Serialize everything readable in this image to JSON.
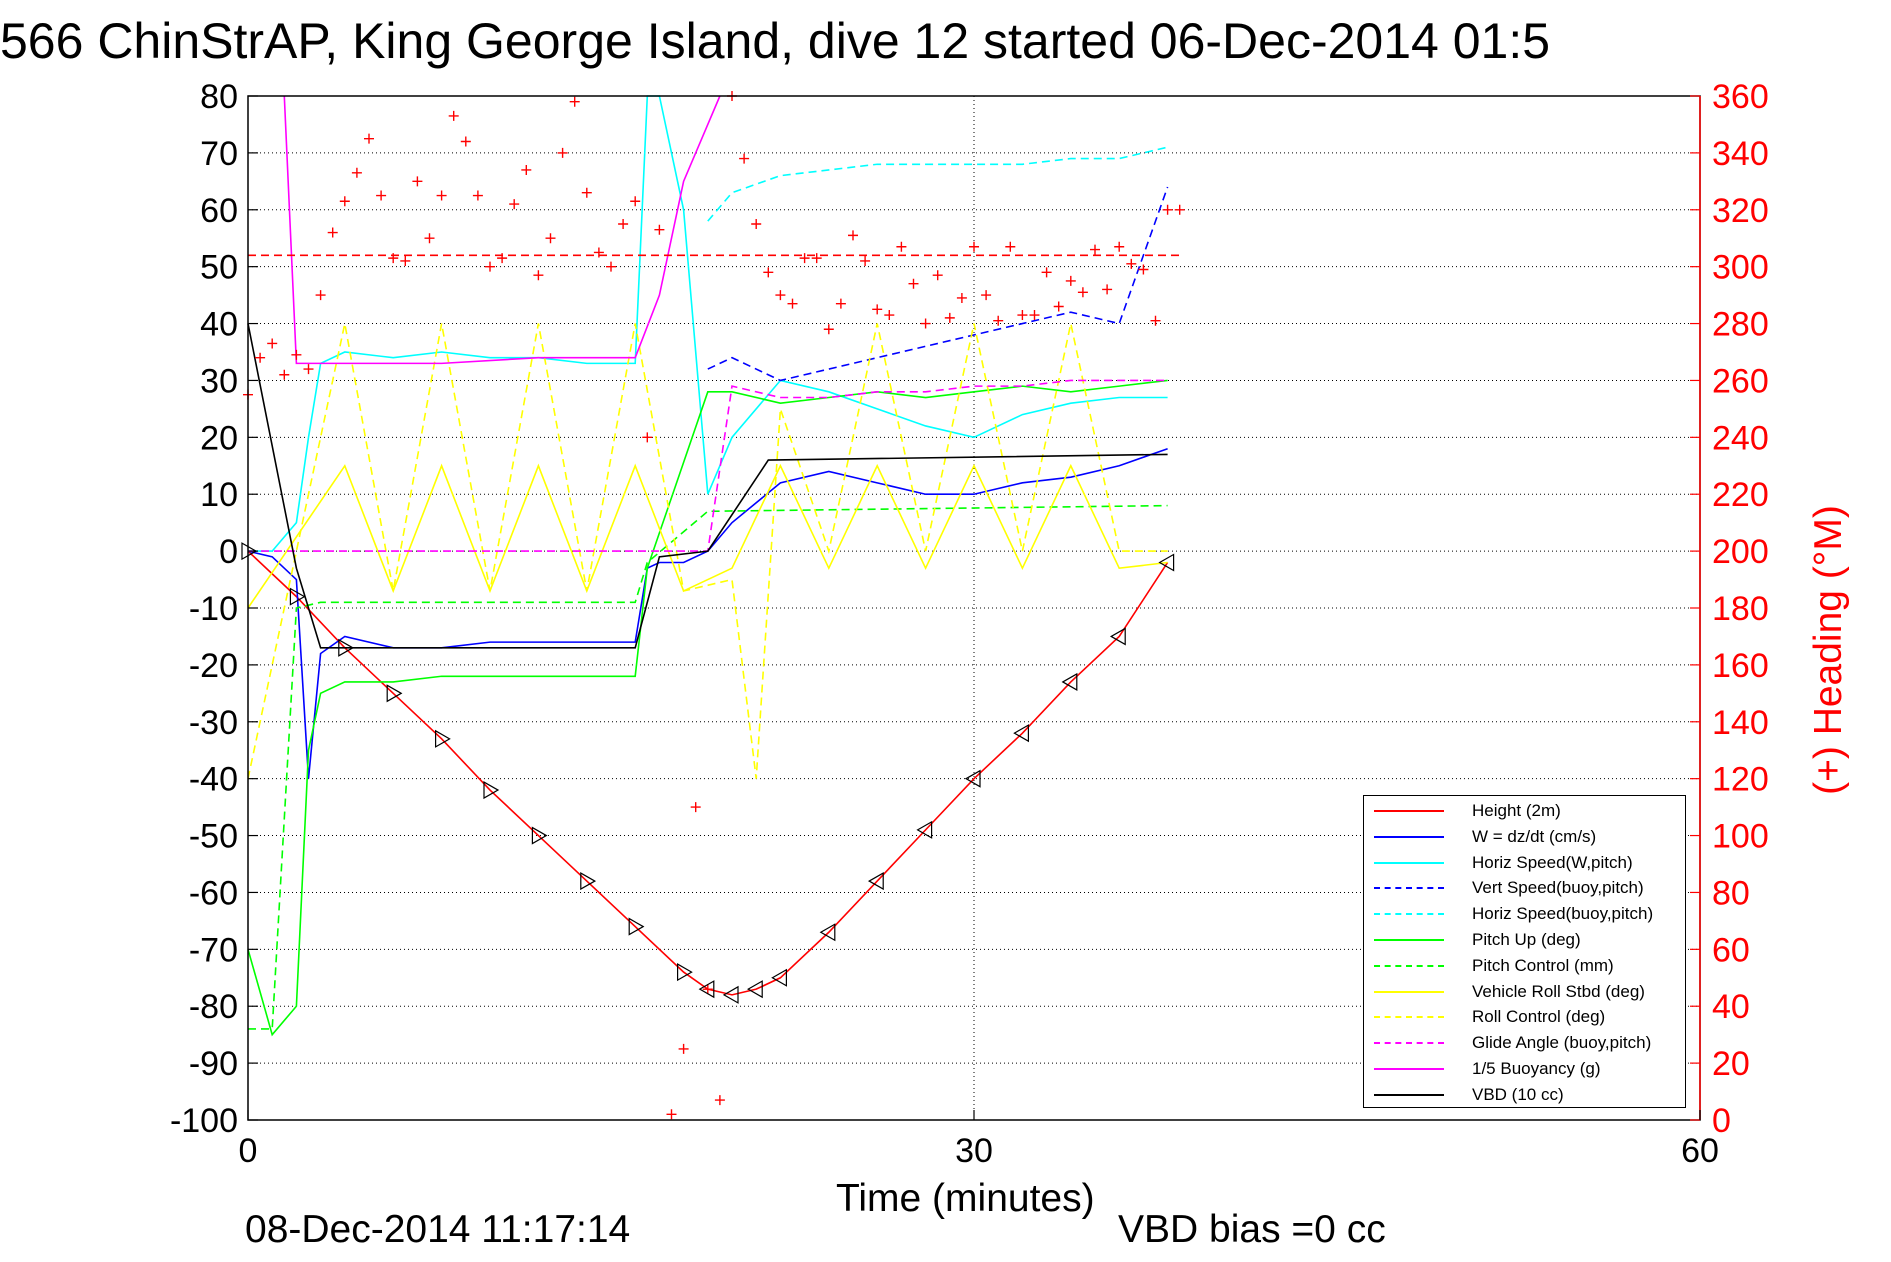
{
  "chart_data": {
    "type": "line",
    "title": "566 ChinStrAP, King George Island, dive 12 started 06-Dec-2014 01:5",
    "xlabel": "Time (minutes)",
    "ylabel_right": "(+) Heading (°M)",
    "footer_left": "08-Dec-2014 11:17:14",
    "footer_right": "VBD bias =0 cc",
    "xlim": [
      0,
      60
    ],
    "ylim": [
      -100,
      80
    ],
    "ylim_right": [
      0,
      360
    ],
    "xticks": [
      "0",
      "30",
      "60"
    ],
    "yticks": [
      "80",
      "70",
      "60",
      "50",
      "40",
      "30",
      "20",
      "10",
      "0",
      "-10",
      "-20",
      "-30",
      "-40",
      "-50",
      "-60",
      "-70",
      "-80",
      "-90",
      "-100"
    ],
    "yticks_right": [
      "360",
      "340",
      "320",
      "300",
      "280",
      "260",
      "240",
      "220",
      "200",
      "180",
      "160",
      "140",
      "120",
      "100",
      "80",
      "60",
      "40",
      "20",
      "0"
    ],
    "grid": true,
    "legend_position": "bottom-right",
    "colors": {
      "left_axis": "#000000",
      "right_axis": "#ff0000"
    },
    "series": [
      {
        "name": "Height (2m)",
        "color": "#ff0000",
        "style": "solid",
        "x": [
          0,
          2,
          4,
          6,
          8,
          10,
          12,
          14,
          16,
          18,
          19,
          20,
          21,
          22,
          24,
          26,
          28,
          30,
          32,
          34,
          36,
          38
        ],
        "y": [
          0,
          -8,
          -17,
          -25,
          -33,
          -42,
          -50,
          -58,
          -66,
          -74,
          -77,
          -78,
          -77,
          -75,
          -67,
          -58,
          -49,
          -40,
          -32,
          -23,
          -15,
          -2
        ]
      },
      {
        "name": "W = dz/dt (cm/s)",
        "color": "#0000ff",
        "style": "solid",
        "x": [
          0,
          1,
          2,
          2.5,
          3,
          4,
          6,
          8,
          10,
          12,
          14,
          16,
          16.5,
          17,
          18,
          19,
          20,
          22,
          24,
          26,
          28,
          30,
          32,
          34,
          36,
          38
        ],
        "y": [
          0,
          -1,
          -5,
          -40,
          -18,
          -15,
          -17,
          -17,
          -16,
          -16,
          -16,
          -16,
          -3,
          -2,
          -2,
          0,
          5,
          12,
          14,
          12,
          10,
          10,
          12,
          13,
          15,
          18
        ]
      },
      {
        "name": "Horiz Speed(W,pitch)",
        "color": "#00ffff",
        "style": "solid",
        "x": [
          0,
          1,
          2,
          2.5,
          3,
          4,
          6,
          8,
          10,
          12,
          14,
          16,
          16.5,
          17,
          18,
          19,
          20,
          22,
          24,
          26,
          28,
          30,
          32,
          34,
          36,
          38
        ],
        "y": [
          0,
          0,
          5,
          20,
          33,
          35,
          34,
          35,
          34,
          34,
          33,
          33,
          80,
          80,
          60,
          10,
          20,
          30,
          28,
          25,
          22,
          20,
          24,
          26,
          27,
          27
        ]
      },
      {
        "name": "Vert Speed(buoy,pitch)",
        "color": "#0000ff",
        "style": "dashed",
        "x": [
          19,
          20,
          22,
          24,
          26,
          28,
          30,
          32,
          34,
          36,
          38
        ],
        "y": [
          32,
          34,
          30,
          32,
          34,
          36,
          38,
          40,
          42,
          40,
          64
        ]
      },
      {
        "name": "Horiz Speed(buoy,pitch)",
        "color": "#00ffff",
        "style": "dashed",
        "x": [
          19,
          20,
          22,
          24,
          26,
          28,
          30,
          32,
          34,
          36,
          38
        ],
        "y": [
          58,
          63,
          66,
          67,
          68,
          68,
          68,
          68,
          69,
          69,
          71
        ]
      },
      {
        "name": "Pitch Up (deg)",
        "color": "#00ff00",
        "style": "solid",
        "x": [
          0,
          1,
          2,
          2.5,
          3,
          4,
          6,
          8,
          10,
          12,
          14,
          16,
          16.5,
          19,
          20,
          22,
          24,
          26,
          28,
          30,
          32,
          34,
          36,
          38
        ],
        "y": [
          -70,
          -85,
          -80,
          -35,
          -25,
          -23,
          -23,
          -22,
          -22,
          -22,
          -22,
          -22,
          -3,
          28,
          28,
          26,
          27,
          28,
          27,
          28,
          29,
          28,
          29,
          30
        ]
      },
      {
        "name": "Pitch Control (mm)",
        "color": "#00ff00",
        "style": "dashed",
        "x": [
          0,
          1,
          2,
          3,
          16,
          16.5,
          19,
          38
        ],
        "y": [
          -84,
          -84,
          -10,
          -9,
          -9,
          -2,
          7,
          8
        ]
      },
      {
        "name": "Vehicle Roll Stbd (deg)",
        "color": "#ffff00",
        "style": "solid",
        "x": [
          0,
          4,
          6,
          8,
          10,
          12,
          14,
          16,
          18,
          20,
          22,
          24,
          26,
          28,
          30,
          32,
          34,
          36,
          38
        ],
        "y": [
          -10,
          15,
          -7,
          15,
          -7,
          15,
          -7,
          15,
          -7,
          -3,
          15,
          -3,
          15,
          -3,
          15,
          -3,
          15,
          -3,
          -2
        ]
      },
      {
        "name": "Roll Control (deg)",
        "color": "#ffff00",
        "style": "dashed",
        "x": [
          0,
          4,
          6,
          8,
          10,
          12,
          14,
          16,
          18,
          20,
          21,
          22,
          24,
          26,
          28,
          30,
          32,
          34,
          36,
          38
        ],
        "y": [
          -40,
          40,
          -7,
          40,
          -7,
          40,
          -7,
          40,
          -7,
          -5,
          -40,
          25,
          0,
          40,
          0,
          40,
          0,
          40,
          0,
          0
        ]
      },
      {
        "name": "Glide Angle (buoy,pitch)",
        "color": "#ff00ff",
        "style": "dashed",
        "x": [
          0,
          19,
          20,
          22,
          24,
          26,
          28,
          30,
          32,
          34,
          36,
          38
        ],
        "y": [
          0,
          0,
          29,
          27,
          27,
          28,
          28,
          29,
          29,
          30,
          30,
          30
        ]
      },
      {
        "name": "1/5 Buoyancy (g)",
        "color": "#ff00ff",
        "style": "solid",
        "x": [
          1.5,
          2,
          4,
          8,
          12,
          16,
          17,
          18,
          19.5
        ],
        "y": [
          80,
          33,
          33,
          33,
          34,
          34,
          45,
          65,
          80
        ]
      },
      {
        "name": "VBD (10 cc)",
        "color": "#000000",
        "style": "solid",
        "x": [
          0,
          2,
          3,
          16,
          17,
          19,
          21.5,
          38
        ],
        "y": [
          40,
          -3,
          -17,
          -17,
          -1,
          0,
          16,
          17
        ]
      }
    ],
    "heading": {
      "axis": "right",
      "color": "#ff0000",
      "marker": "+",
      "target": 304,
      "x": [
        0,
        0.5,
        1,
        1.5,
        2,
        2.5,
        3,
        3.5,
        4,
        4.5,
        5,
        5.5,
        6,
        6.5,
        7,
        7.5,
        8,
        8.5,
        9,
        9.5,
        10,
        10.5,
        11,
        11.5,
        12,
        12.5,
        13,
        13.5,
        14,
        14.5,
        15,
        15.5,
        16,
        16.5,
        17,
        17.5,
        18,
        18.5,
        19,
        19.5,
        20,
        20.5,
        21,
        21.5,
        22,
        22.5,
        23,
        23.5,
        24,
        24.5,
        25,
        25.5,
        26,
        26.5,
        27,
        27.5,
        28,
        28.5,
        29,
        29.5,
        30,
        30.5,
        31,
        31.5,
        32,
        32.5,
        33,
        33.5,
        34,
        34.5,
        35,
        35.5,
        36,
        36.5,
        37,
        37.5,
        38,
        38.5
      ],
      "y": [
        255,
        268,
        273,
        262,
        269,
        264,
        290,
        312,
        323,
        333,
        345,
        325,
        303,
        302,
        330,
        310,
        325,
        353,
        344,
        325,
        300,
        303,
        322,
        334,
        297,
        310,
        340,
        358,
        326,
        305,
        300,
        315,
        323,
        240,
        313,
        2,
        25,
        110,
        46,
        7,
        361,
        338,
        315,
        298,
        290,
        287,
        303,
        303,
        278,
        287,
        311,
        302,
        285,
        283,
        307,
        294,
        280,
        297,
        282,
        289,
        307,
        290,
        281,
        307,
        283,
        283,
        298,
        286,
        295,
        291,
        306,
        292,
        307,
        301,
        299,
        281,
        320,
        320
      ]
    }
  },
  "legend": {
    "items": [
      {
        "label": "Height (2m)",
        "color": "#ff0000",
        "style": "solid"
      },
      {
        "label": "W = dz/dt (cm/s)",
        "color": "#0000ff",
        "style": "solid"
      },
      {
        "label": "Horiz Speed(W,pitch)",
        "color": "#00ffff",
        "style": "solid"
      },
      {
        "label": "Vert Speed(buoy,pitch)",
        "color": "#0000ff",
        "style": "dashed"
      },
      {
        "label": "Horiz Speed(buoy,pitch)",
        "color": "#00ffff",
        "style": "dashed"
      },
      {
        "label": "Pitch Up (deg)",
        "color": "#00ff00",
        "style": "solid"
      },
      {
        "label": "Pitch Control (mm)",
        "color": "#00ff00",
        "style": "dashed"
      },
      {
        "label": "Vehicle Roll Stbd (deg)",
        "color": "#ffff00",
        "style": "solid"
      },
      {
        "label": "Roll Control (deg)",
        "color": "#ffff00",
        "style": "dashed"
      },
      {
        "label": "Glide Angle (buoy,pitch)",
        "color": "#ff00ff",
        "style": "dashed"
      },
      {
        "label": "1/5 Buoyancy (g)",
        "color": "#ff00ff",
        "style": "solid"
      },
      {
        "label": "VBD (10 cc)",
        "color": "#000000",
        "style": "solid"
      }
    ]
  }
}
